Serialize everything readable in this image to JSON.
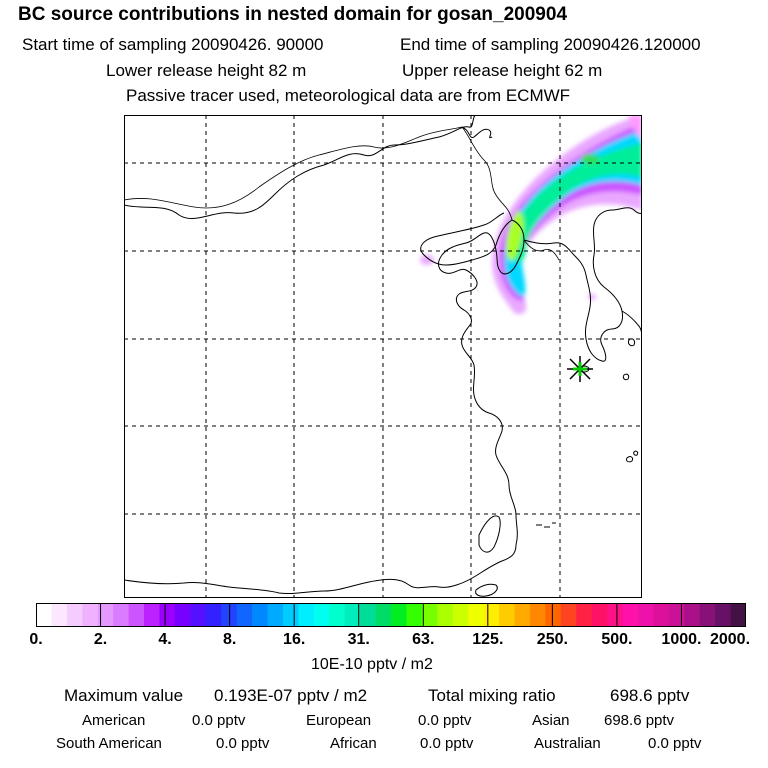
{
  "header": {
    "title": "BC  source contributions in nested domain for gosan_200904",
    "start_label": "Start time of sampling 20090426. 90000",
    "end_label": "End time of sampling 20090426.120000",
    "lower_release": "Lower release height   82 m",
    "upper_release": "Upper release height   62 m",
    "tracer_note": "Passive tracer used, meteorological data are from ECMWF"
  },
  "colorbar": {
    "ticks": [
      "0.",
      "2.",
      "4.",
      "8.",
      "16.",
      "31.",
      "63.",
      "125.",
      "250.",
      "500.",
      "1000.",
      "2000."
    ],
    "units": "10E-10 pptv / m2",
    "colors": [
      "#ffffff",
      "#fbe8ff",
      "#f5ccff",
      "#f0b2ff",
      "#e599ff",
      "#d97cff",
      "#cc55ff",
      "#bb22ff",
      "#9900ff",
      "#7700ff",
      "#5511ff",
      "#3322ff",
      "#2244ff",
      "#1166ff",
      "#0088ff",
      "#00aaff",
      "#00ccff",
      "#00eeff",
      "#00ffee",
      "#00ffcc",
      "#00eebb",
      "#00dd99",
      "#00dd66",
      "#00ee22",
      "#33ff00",
      "#77ff00",
      "#aaff00",
      "#ccff00",
      "#eeff00",
      "#ffee00",
      "#ffcc00",
      "#ffaa00",
      "#ff8800",
      "#ff6600",
      "#ff4422",
      "#ff2244",
      "#ff1166",
      "#ff1188",
      "#ff11aa",
      "#ee11aa",
      "#dd1199",
      "#cc1199",
      "#aa1188",
      "#881177",
      "#661166",
      "#441144"
    ]
  },
  "summary": {
    "max_label": "Maximum value",
    "max_value": "0.193E-07 pptv / m2",
    "total_label": "Total mixing ratio",
    "total_value": "698.6 pptv"
  },
  "regions": [
    {
      "name": "American",
      "value": "0.0 pptv"
    },
    {
      "name": "European",
      "value": "0.0 pptv"
    },
    {
      "name": "Asian",
      "value": "698.6 pptv"
    },
    {
      "name": "South American",
      "value": "0.0 pptv"
    },
    {
      "name": "African",
      "value": "0.0 pptv"
    },
    {
      "name": "Australian",
      "value": "0.0 pptv"
    }
  ]
}
